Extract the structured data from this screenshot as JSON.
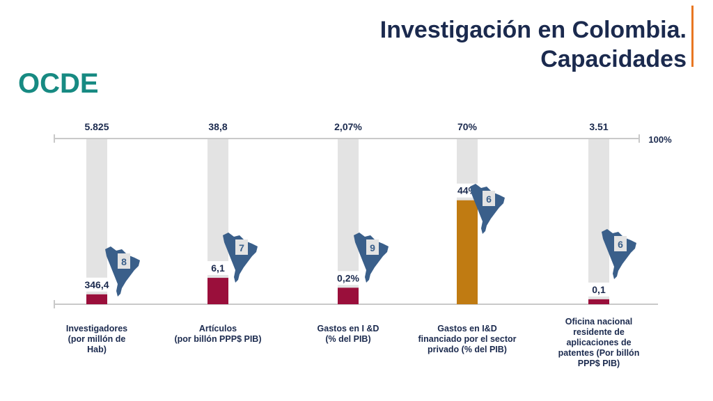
{
  "header": {
    "title_line1": "Investigación en Colombia.",
    "title_line2": "Capacidades",
    "ocde": "OCDE"
  },
  "colors": {
    "title": "#1b2a4e",
    "ocde": "#178a82",
    "accent_bar": "#e87722",
    "bar_bg": "#e3e3e3",
    "bar_red": "#9a0f3b",
    "bar_gold": "#c07b12",
    "map": "#3a5f8a",
    "label": "#1b2a4e"
  },
  "chart_data": {
    "type": "bar",
    "ref_label": "100%",
    "categories": [
      "Investigadores\n(por millón de\nHab)",
      "Artículos\n(por billón PPP$ PIB)",
      "Gastos en I &D\n(% del PIB)",
      "Gastos en I&D\nfinanciado por el sector\nprivado (% del PIB)",
      "Oficina nacional\nresidente de\naplicaciones de\npatentes (Por billón\nPPP$ PIB)"
    ],
    "ocde_values": [
      "5.825",
      "38,8",
      "2,07%",
      "70%",
      "3.51"
    ],
    "colombia_values": [
      "346,4",
      "6,1",
      "0,2%",
      "44%",
      "0,1"
    ],
    "colombia_pct_of_ocde": [
      6,
      16,
      10,
      63,
      3
    ],
    "ranks": [
      "8",
      "7",
      "9",
      "6",
      "6"
    ],
    "ylim": [
      0,
      100
    ]
  }
}
